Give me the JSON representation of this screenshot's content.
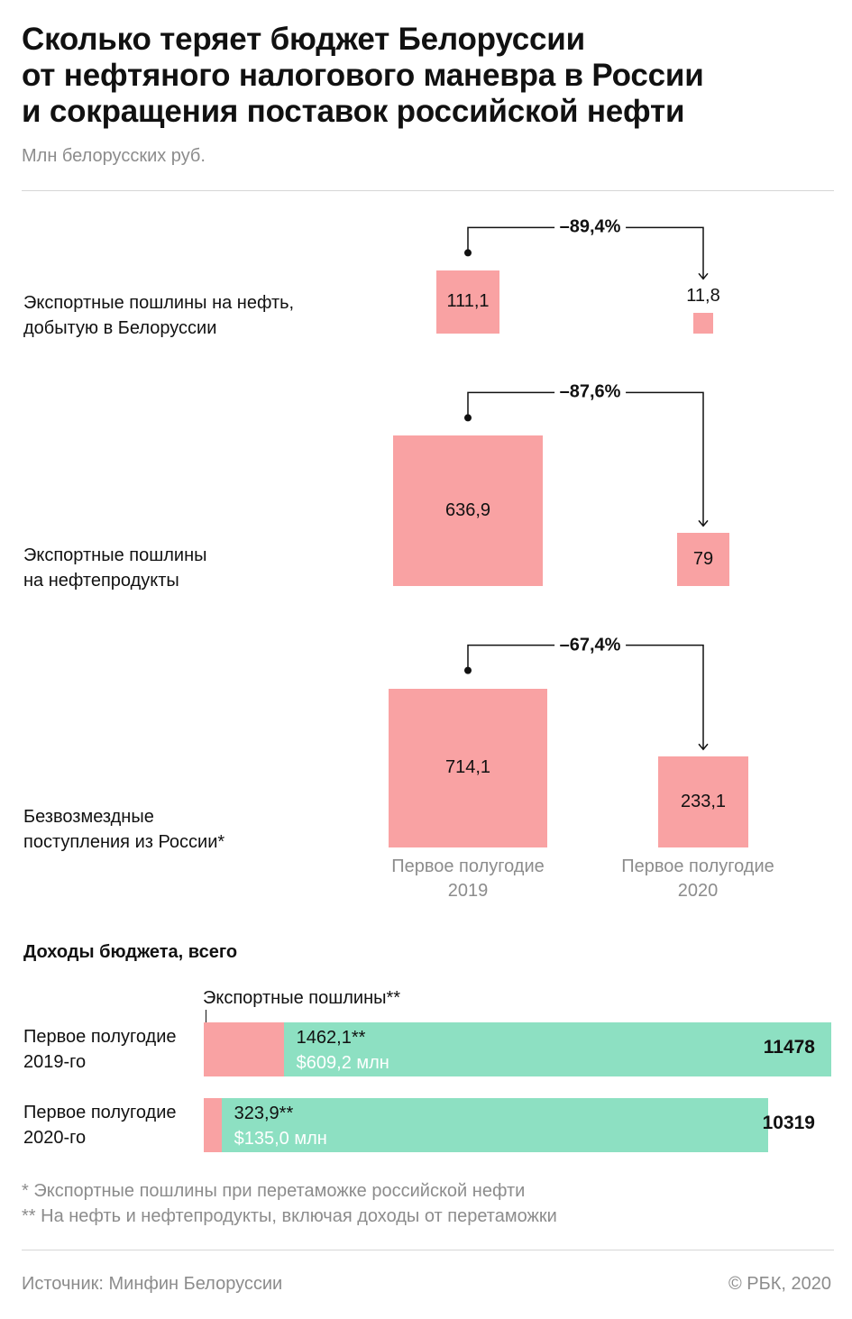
{
  "header": {
    "title_lines": [
      "Сколько теряет бюджет Белоруссии",
      "от нефтяного налогового маневра в России",
      "и сокращения поставок российской нефти"
    ],
    "subtitle": "Млн белорусских руб."
  },
  "chart_data": [
    {
      "type": "proportional-squares",
      "unit": "Млн белорусских руб.",
      "periods": [
        [
          "Первое полугодие",
          "2019"
        ],
        [
          "Первое полугодие",
          "2020"
        ]
      ],
      "rows": [
        {
          "label_lines": [
            "Экспортные пошлины на нефть,",
            "добытую в Белоруссии"
          ],
          "values": [
            111.1,
            11.8
          ],
          "value_labels": [
            "111,1",
            "11,8"
          ],
          "change_label": "–89,4%"
        },
        {
          "label_lines": [
            "Экспортные пошлины",
            "на нефтепродукты"
          ],
          "values": [
            636.9,
            79
          ],
          "value_labels": [
            "636,9",
            "79"
          ],
          "change_label": "–87,6%"
        },
        {
          "label_lines": [
            "Безвозмездные",
            "поступления из России*"
          ],
          "values": [
            714.1,
            233.1
          ],
          "value_labels": [
            "714,1",
            "233,1"
          ],
          "change_label": "–67,4%"
        }
      ],
      "colors": {
        "squares": "#f9a2a3",
        "connector": "#111111"
      }
    },
    {
      "type": "stacked-bar",
      "title": "Доходы бюджета, всего",
      "segment_label": "Экспортные пошлины**",
      "rows": [
        {
          "label_lines": [
            "Первое полугодие",
            "2019-го"
          ],
          "export_duties": 1462.1,
          "export_duties_label": "1462,1**",
          "usd_label": "$609,2 млн",
          "total": 11478,
          "total_label": "11478"
        },
        {
          "label_lines": [
            "Первое полугодие",
            "2020-го"
          ],
          "export_duties": 323.9,
          "export_duties_label": "323,9**",
          "usd_label": "$135,0 млн",
          "total": 10319,
          "total_label": "10319"
        }
      ],
      "colors": {
        "export_duties": "#f9a2a3",
        "rest": "#8de0c2"
      }
    }
  ],
  "footnotes": [
    "* Экспортные пошлины при перетаможке российской нефти",
    "** На нефть и нефтепродукты, включая доходы от перетаможки"
  ],
  "footer": {
    "source": "Источник: Минфин Белоруссии",
    "copyright": "© РБК, 2020"
  }
}
